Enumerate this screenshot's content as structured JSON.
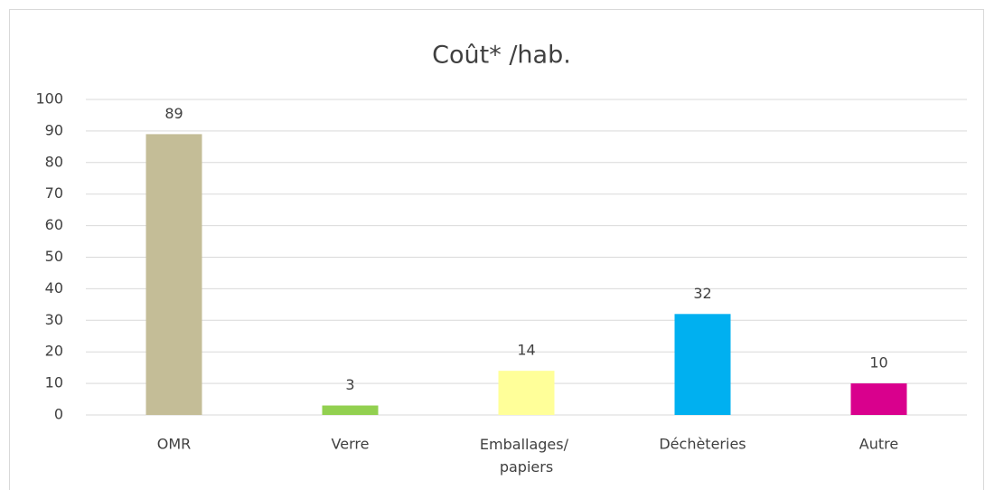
{
  "chart_data": {
    "type": "bar",
    "title": "Coût* /hab.",
    "categories": [
      "OMR",
      "Verre",
      "Emballages/ papiers",
      "Déchèteries",
      "Autre"
    ],
    "values": [
      89,
      3,
      14,
      32,
      10
    ],
    "colors": [
      "#c4bd97",
      "#92d050",
      "#ffff99",
      "#00b0f0",
      "#d9008d"
    ],
    "ylim": [
      0,
      100
    ],
    "yticks": [
      0,
      10,
      20,
      30,
      40,
      50,
      60,
      70,
      80,
      90,
      100
    ],
    "grid": true
  }
}
